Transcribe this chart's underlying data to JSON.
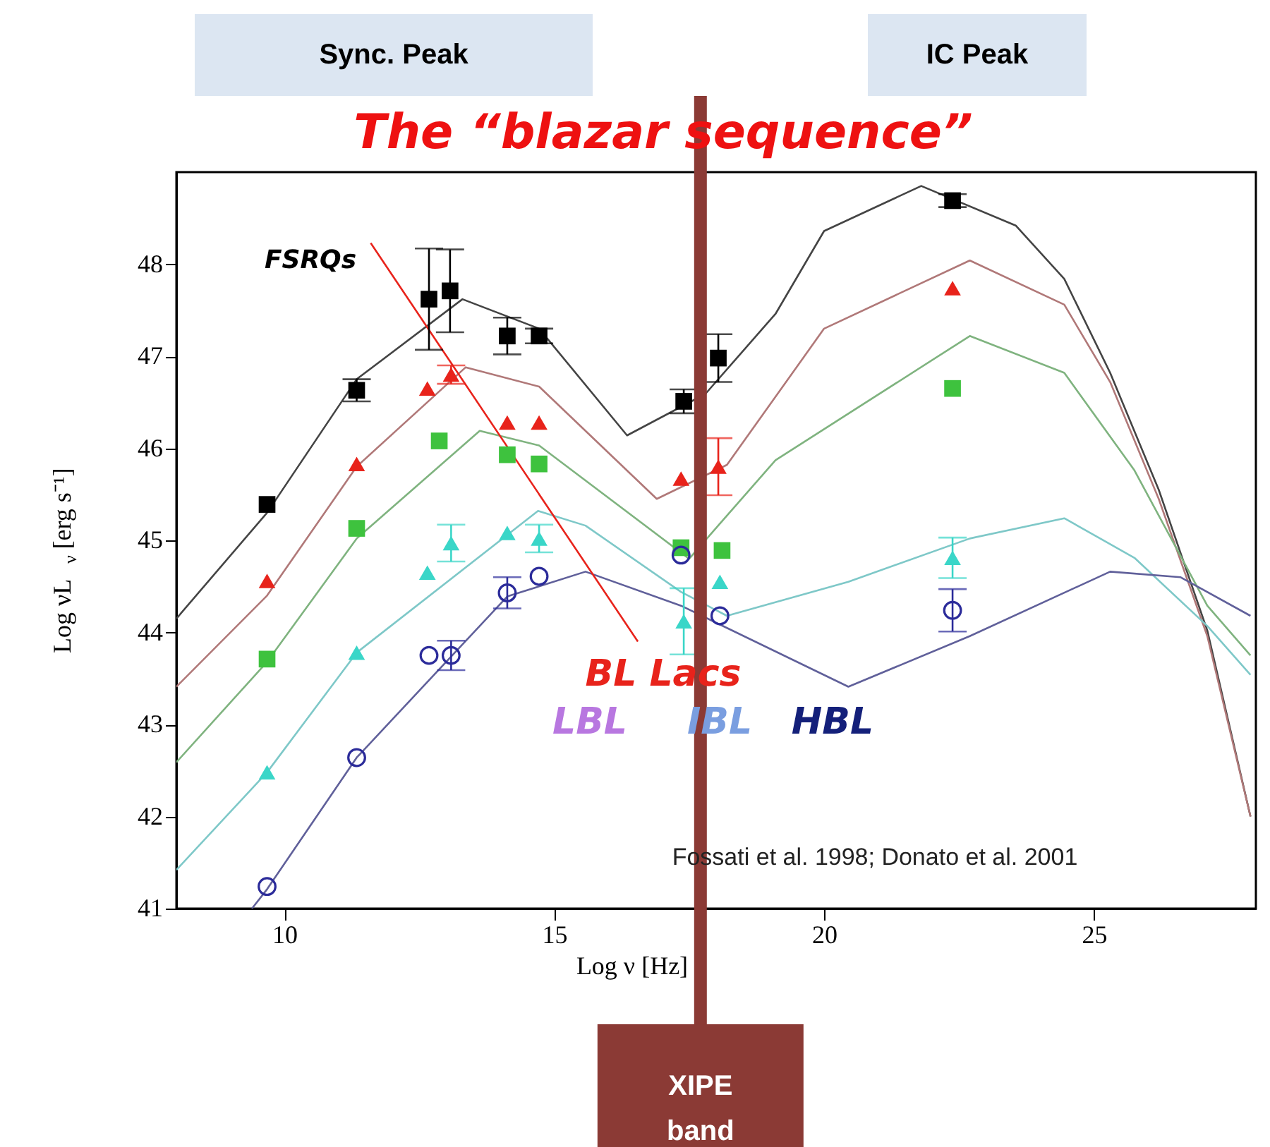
{
  "chart_data": {
    "type": "scatter",
    "title": "The “blazar sequence”",
    "xlabel": "Log ν [Hz]",
    "ylabel": "Log νL$_{ν}$ [erg s⁻¹]",
    "xlim": [
      8,
      28
    ],
    "ylim": [
      41,
      49
    ],
    "xticks": [
      10,
      15,
      20,
      25
    ],
    "yticks": [
      41,
      42,
      43,
      44,
      45,
      46,
      47,
      48
    ],
    "grid": false,
    "series": [
      {
        "type": "line",
        "color": "#444444",
        "x": [
          8.0,
          9.68,
          11.34,
          13.3,
          14.72,
          16.35,
          17.8,
          19.1,
          20.0,
          21.8,
          23.55,
          24.45,
          25.3,
          26.2,
          27.1,
          27.9
        ],
        "values": [
          44.15,
          45.3,
          46.75,
          47.62,
          47.3,
          46.14,
          46.59,
          47.46,
          48.36,
          48.85,
          48.42,
          47.84,
          46.82,
          45.55,
          44.02,
          42.0
        ]
      },
      {
        "type": "line",
        "color": "#b07878",
        "x": [
          8.0,
          9.68,
          11.34,
          13.36,
          14.72,
          16.9,
          18.2,
          20.0,
          22.7,
          24.45,
          25.3,
          26.2,
          27.1,
          27.9
        ],
        "values": [
          43.41,
          44.4,
          45.8,
          46.88,
          46.67,
          45.45,
          45.82,
          47.3,
          48.04,
          47.56,
          46.72,
          45.45,
          43.96,
          42.0
        ]
      },
      {
        "type": "line",
        "color": "#7fb37f",
        "x": [
          8.0,
          9.68,
          11.34,
          13.62,
          14.72,
          17.5,
          19.1,
          22.7,
          24.45,
          25.75,
          27.1,
          27.9
        ],
        "values": [
          42.59,
          43.68,
          45.02,
          46.19,
          46.03,
          44.8,
          45.87,
          47.22,
          46.82,
          45.76,
          44.29,
          43.75
        ]
      },
      {
        "type": "line",
        "color": "#7ec8c8",
        "x": [
          8.0,
          9.68,
          11.34,
          14.7,
          15.58,
          17.35,
          18.2,
          20.45,
          22.7,
          24.45,
          25.75,
          27.1,
          27.9
        ],
        "values": [
          41.42,
          42.48,
          43.78,
          45.32,
          45.16,
          44.44,
          44.18,
          44.55,
          45.02,
          45.24,
          44.81,
          44.07,
          43.54
        ]
      },
      {
        "type": "line",
        "color": "#60609a",
        "x": [
          9.4,
          9.68,
          11.34,
          14.13,
          15.58,
          17.35,
          20.45,
          22.7,
          25.3,
          26.6,
          27.9
        ],
        "values": [
          41.0,
          41.21,
          42.64,
          44.39,
          44.66,
          44.29,
          43.41,
          43.96,
          44.66,
          44.6,
          44.18
        ]
      },
      {
        "type": "line",
        "color": "#e8231b",
        "x": [
          11.6,
          16.55
        ],
        "values": [
          48.23,
          43.9
        ]
      },
      {
        "marker": "square",
        "color": "#000000",
        "x": [
          9.68,
          11.34,
          12.68,
          13.07,
          14.13,
          14.72,
          17.4,
          18.04,
          22.38
        ],
        "values": [
          45.39,
          46.63,
          47.62,
          47.71,
          47.22,
          47.22,
          46.51,
          46.98,
          48.69
        ],
        "errors": [
          null,
          0.12,
          0.55,
          0.45,
          0.2,
          0.08,
          0.13,
          0.26,
          0.07
        ]
      },
      {
        "marker": "triangle",
        "color": "#e8231b",
        "x": [
          9.68,
          11.34,
          12.65,
          13.09,
          14.13,
          14.72,
          17.35,
          18.04,
          22.38
        ],
        "values": [
          44.56,
          45.83,
          46.65,
          46.8,
          46.28,
          46.28,
          45.67,
          45.8,
          47.74
        ],
        "errors": [
          null,
          null,
          null,
          0.1,
          null,
          null,
          null,
          0.31,
          null
        ]
      },
      {
        "marker": "square",
        "color": "#3ec23e",
        "x": [
          9.68,
          11.34,
          12.87,
          14.13,
          14.72,
          17.35,
          18.11,
          22.38
        ],
        "values": [
          43.71,
          45.13,
          46.08,
          45.93,
          45.83,
          44.92,
          44.89,
          46.65
        ]
      },
      {
        "marker": "triangle",
        "color": "#3ad6c8",
        "x": [
          9.68,
          11.34,
          12.65,
          13.09,
          14.13,
          14.72,
          17.4,
          18.07,
          22.38
        ],
        "values": [
          42.48,
          43.78,
          44.65,
          44.97,
          45.08,
          45.02,
          44.12,
          44.55,
          44.81
        ],
        "errors": [
          null,
          null,
          null,
          0.2,
          null,
          0.15,
          0.36,
          null,
          0.22
        ]
      },
      {
        "marker": "circle",
        "color": "#2b2b9a",
        "x": [
          9.68,
          11.34,
          12.68,
          13.09,
          14.13,
          14.72,
          17.35,
          18.07,
          22.38
        ],
        "values": [
          41.24,
          42.64,
          43.75,
          43.75,
          44.43,
          44.61,
          44.84,
          44.18,
          44.24
        ],
        "errors": [
          null,
          null,
          null,
          0.16,
          0.17,
          null,
          null,
          null,
          0.23
        ]
      }
    ],
    "ref_lines": [
      {
        "axis": "x",
        "value": 17.71,
        "label": "XIPE band",
        "color": "#8b3a35"
      }
    ],
    "annotations": [
      "Sync. Peak",
      "IC Peak",
      "FSRQs",
      "BL Lacs",
      "LBL",
      "IBL",
      "HBL",
      "Fossati et al. 1998; Donato et al. 2001"
    ]
  }
}
